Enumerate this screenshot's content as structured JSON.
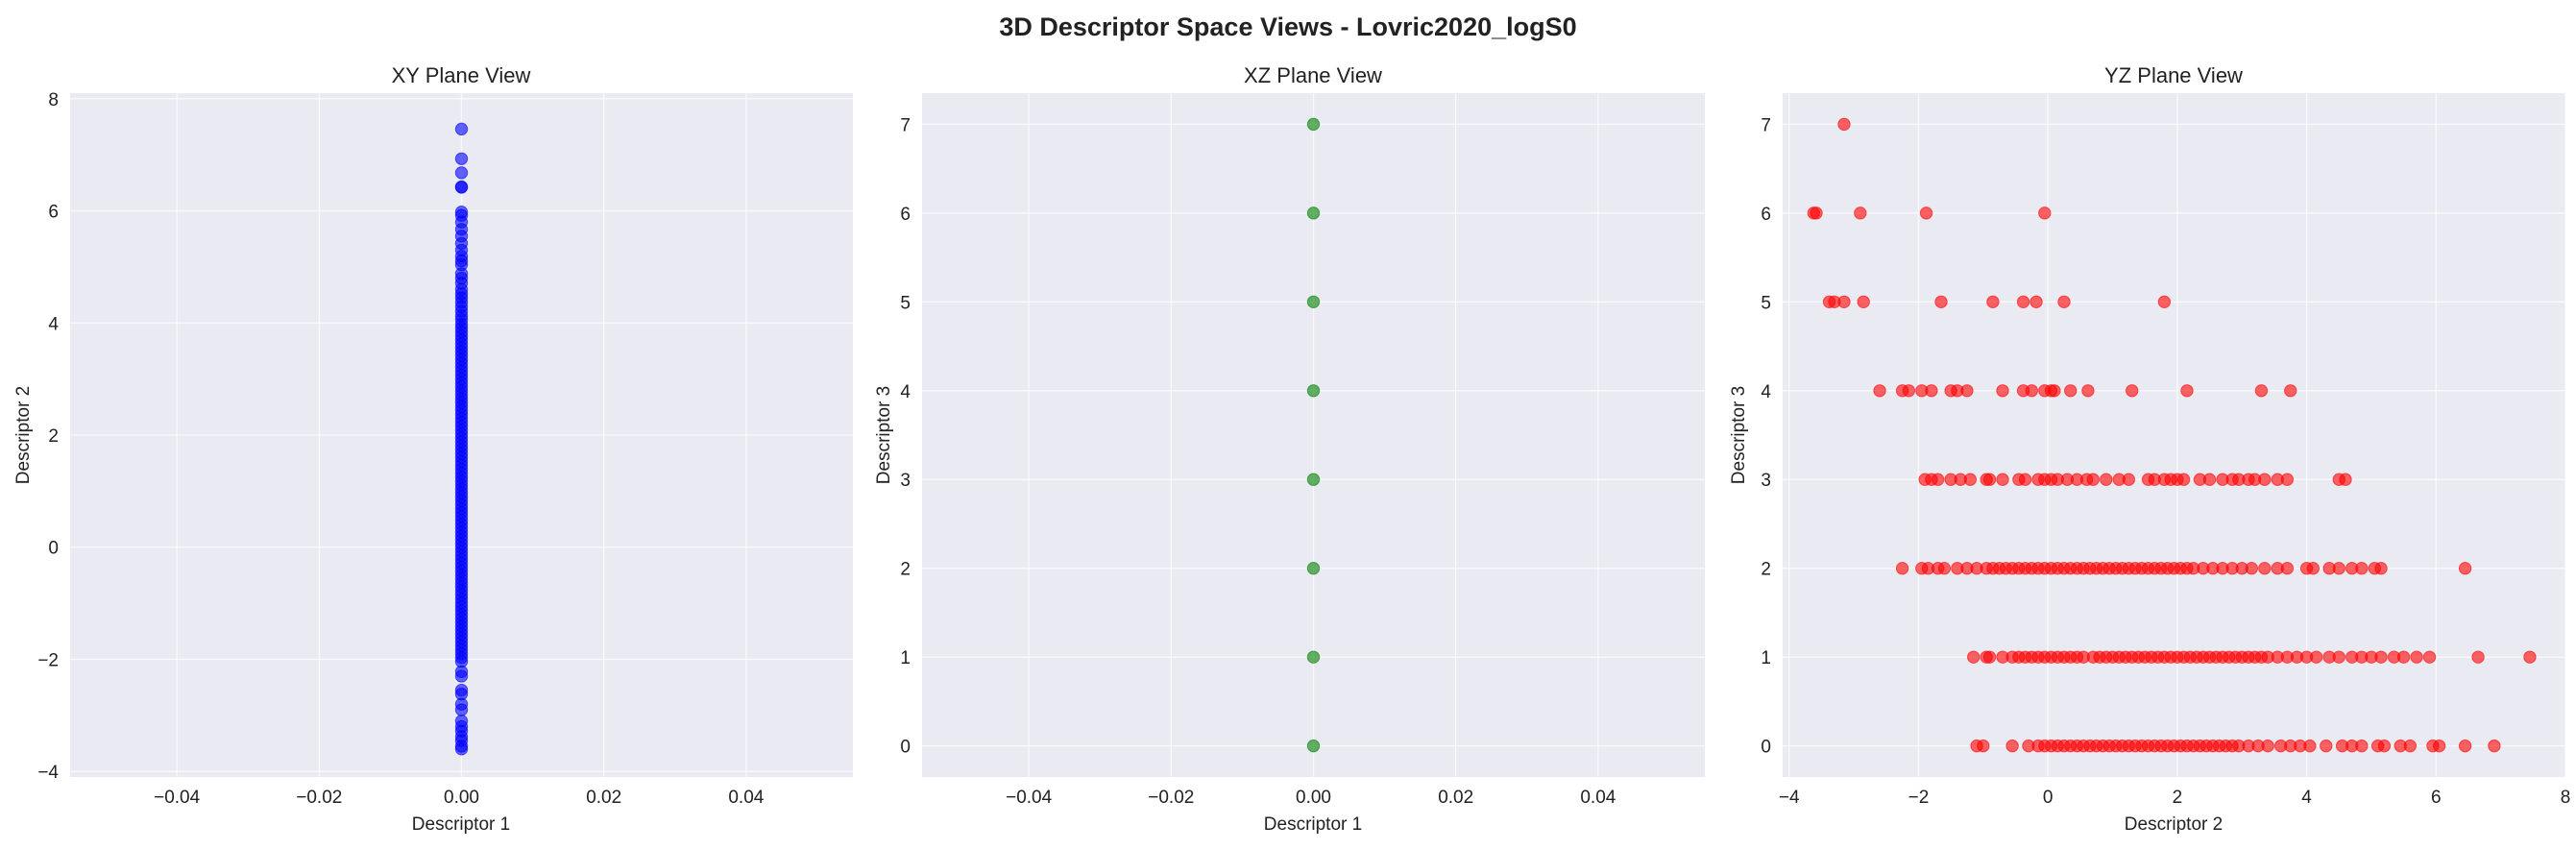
{
  "figure_title": "3D Descriptor Space Views - Lovric2020_logS0",
  "chart_data": [
    {
      "type": "scatter",
      "title": "XY Plane View",
      "xlabel": "Descriptor 1",
      "ylabel": "Descriptor 2",
      "xlim": [
        -0.055,
        0.055
      ],
      "ylim": [
        -4.1,
        8.1
      ],
      "xticks": [
        -0.04,
        -0.02,
        0.0,
        0.02,
        0.04
      ],
      "xtick_labels": [
        "−0.04",
        "−0.02",
        "0.00",
        "0.02",
        "0.04"
      ],
      "yticks": [
        -4,
        -2,
        0,
        2,
        4,
        6,
        8
      ],
      "ytick_labels": [
        "−4",
        "−2",
        "0",
        "2",
        "4",
        "6",
        "8"
      ],
      "grid": true,
      "color": "#0000ff",
      "points": {
        "x_constant": 0.0,
        "y": [
          7.46,
          6.93,
          6.68,
          6.43,
          6.42,
          5.98,
          5.92,
          5.8,
          5.67,
          5.55,
          5.42,
          5.3,
          5.19,
          5.11,
          5.04,
          4.88,
          4.8,
          4.71,
          4.6,
          4.52,
          4.45,
          4.37,
          4.29,
          4.21,
          4.13,
          4.06,
          3.98,
          3.91,
          3.84,
          3.77,
          3.7,
          3.63,
          3.56,
          3.49,
          3.42,
          3.35,
          3.28,
          3.21,
          3.14,
          3.07,
          3.0,
          2.93,
          2.86,
          2.79,
          2.72,
          2.65,
          2.58,
          2.51,
          2.44,
          2.37,
          2.3,
          2.23,
          2.16,
          2.09,
          2.02,
          1.95,
          1.88,
          1.81,
          1.74,
          1.67,
          1.6,
          1.53,
          1.46,
          1.39,
          1.32,
          1.25,
          1.18,
          1.11,
          1.04,
          0.97,
          0.9,
          0.83,
          0.76,
          0.69,
          0.62,
          0.55,
          0.48,
          0.41,
          0.34,
          0.27,
          0.2,
          0.13,
          0.06,
          -0.01,
          -0.08,
          -0.15,
          -0.22,
          -0.29,
          -0.36,
          -0.43,
          -0.5,
          -0.57,
          -0.64,
          -0.71,
          -0.78,
          -0.85,
          -0.92,
          -0.99,
          -1.06,
          -1.13,
          -1.2,
          -1.27,
          -1.34,
          -1.41,
          -1.48,
          -1.55,
          -1.62,
          -1.69,
          -1.76,
          -1.83,
          -1.9,
          -1.97,
          -2.04,
          -2.22,
          -2.3,
          -2.55,
          -2.62,
          -2.8,
          -2.9,
          -3.1,
          -3.2,
          -3.28,
          -3.38,
          -3.45,
          -3.55,
          -3.6
        ]
      }
    },
    {
      "type": "scatter",
      "title": "XZ Plane View",
      "xlabel": "Descriptor 1",
      "ylabel": "Descriptor 3",
      "xlim": [
        -0.055,
        0.055
      ],
      "ylim": [
        -0.35,
        7.35
      ],
      "xticks": [
        -0.04,
        -0.02,
        0.0,
        0.02,
        0.04
      ],
      "xtick_labels": [
        "−0.04",
        "−0.02",
        "0.00",
        "0.02",
        "0.04"
      ],
      "yticks": [
        0,
        1,
        2,
        3,
        4,
        5,
        6,
        7
      ],
      "ytick_labels": [
        "0",
        "1",
        "2",
        "3",
        "4",
        "5",
        "6",
        "7"
      ],
      "grid": true,
      "color": "#008000",
      "points": {
        "x_constant": 0.0,
        "y": [
          0,
          1,
          2,
          3,
          4,
          5,
          6,
          7
        ]
      }
    },
    {
      "type": "scatter",
      "title": "YZ Plane View",
      "xlabel": "Descriptor 2",
      "ylabel": "Descriptor 3",
      "xlim": [
        -4.1,
        8.0
      ],
      "ylim": [
        -0.35,
        7.35
      ],
      "xticks": [
        -4,
        -2,
        0,
        2,
        4,
        6,
        8
      ],
      "xtick_labels": [
        "−4",
        "−2",
        "0",
        "2",
        "4",
        "6",
        "8"
      ],
      "yticks": [
        0,
        1,
        2,
        3,
        4,
        5,
        6,
        7
      ],
      "ytick_labels": [
        "0",
        "1",
        "2",
        "3",
        "4",
        "5",
        "6",
        "7"
      ],
      "grid": true,
      "color": "#ff0000",
      "rows": [
        {
          "z": 7,
          "x": [
            -3.15
          ]
        },
        {
          "z": 6,
          "x": [
            -3.62,
            -3.58,
            -2.9,
            -1.88,
            -0.05
          ]
        },
        {
          "z": 5,
          "x": [
            -3.38,
            -3.3,
            -3.15,
            -2.85,
            -1.65,
            -0.85,
            -0.38,
            -0.18,
            0.25,
            1.8
          ]
        },
        {
          "z": 4,
          "x": [
            -2.6,
            -2.25,
            -2.15,
            -1.95,
            -1.8,
            -1.5,
            -1.4,
            -1.25,
            -0.7,
            -0.38,
            -0.25,
            -0.05,
            0.05,
            0.1,
            0.35,
            0.62,
            1.3,
            2.15,
            3.3,
            3.75
          ]
        },
        {
          "z": 3,
          "x": [
            -1.9,
            -1.8,
            -1.7,
            -1.5,
            -1.35,
            -1.2,
            -0.95,
            -0.9,
            -0.7,
            -0.45,
            -0.35,
            -0.15,
            -0.05,
            0.05,
            0.15,
            0.3,
            0.45,
            0.6,
            0.7,
            0.9,
            1.1,
            1.25,
            1.55,
            1.65,
            1.8,
            1.9,
            2.0,
            2.1,
            2.35,
            2.5,
            2.7,
            2.85,
            2.95,
            3.1,
            3.2,
            3.35,
            3.55,
            3.7,
            4.5,
            4.6
          ]
        },
        {
          "z": 2,
          "x": [
            -2.25,
            -1.95,
            -1.85,
            -1.7,
            -1.6,
            -1.4,
            -1.25,
            -1.1,
            -0.95,
            -0.85,
            -0.75,
            -0.65,
            -0.55,
            -0.45,
            -0.35,
            -0.25,
            -0.15,
            -0.05,
            0.05,
            0.15,
            0.25,
            0.35,
            0.45,
            0.55,
            0.65,
            0.75,
            0.85,
            0.95,
            1.05,
            1.15,
            1.25,
            1.35,
            1.45,
            1.55,
            1.65,
            1.75,
            1.85,
            1.95,
            2.05,
            2.15,
            2.25,
            2.4,
            2.55,
            2.7,
            2.85,
            3.0,
            3.15,
            3.35,
            3.55,
            3.7,
            4.0,
            4.1,
            4.35,
            4.5,
            4.7,
            4.85,
            5.05,
            5.15,
            6.45
          ]
        },
        {
          "z": 1,
          "x": [
            -1.15,
            -0.95,
            -0.9,
            -0.7,
            -0.55,
            -0.45,
            -0.35,
            -0.25,
            -0.15,
            -0.05,
            0.05,
            0.15,
            0.25,
            0.35,
            0.45,
            0.55,
            0.7,
            0.8,
            0.9,
            1.0,
            1.1,
            1.2,
            1.3,
            1.4,
            1.5,
            1.6,
            1.7,
            1.8,
            1.9,
            2.0,
            2.1,
            2.2,
            2.3,
            2.4,
            2.5,
            2.6,
            2.7,
            2.8,
            2.9,
            3.0,
            3.1,
            3.2,
            3.3,
            3.4,
            3.55,
            3.7,
            3.85,
            4.0,
            4.15,
            4.35,
            4.5,
            4.7,
            4.85,
            5.0,
            5.15,
            5.35,
            5.5,
            5.7,
            5.9,
            6.65,
            7.45
          ]
        },
        {
          "z": 0,
          "x": [
            -1.1,
            -1.0,
            -0.55,
            -0.3,
            -0.15,
            -0.05,
            0.05,
            0.15,
            0.25,
            0.35,
            0.45,
            0.55,
            0.65,
            0.75,
            0.85,
            0.95,
            1.05,
            1.15,
            1.25,
            1.35,
            1.45,
            1.55,
            1.65,
            1.75,
            1.85,
            1.95,
            2.05,
            2.15,
            2.25,
            2.35,
            2.45,
            2.55,
            2.65,
            2.75,
            2.85,
            2.95,
            3.1,
            3.25,
            3.4,
            3.6,
            3.75,
            3.9,
            4.05,
            4.3,
            4.55,
            4.7,
            4.85,
            5.1,
            5.2,
            5.45,
            5.6,
            5.95,
            6.05,
            6.45,
            6.9
          ]
        }
      ]
    }
  ]
}
